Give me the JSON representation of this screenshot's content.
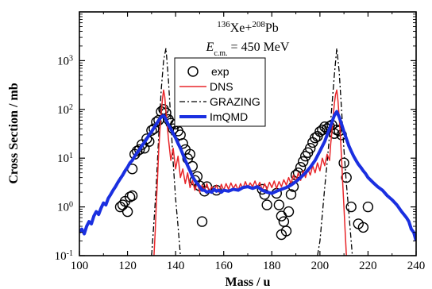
{
  "chart_data": {
    "type": "line",
    "title": "",
    "xlabel": "Mass / u",
    "ylabel": "Cross Section / mb",
    "xlim": [
      100,
      240
    ],
    "ylim": [
      0.1,
      10000
    ],
    "yscale": "log",
    "x_ticks": [
      "100",
      "120",
      "140",
      "160",
      "180",
      "200",
      "220",
      "240"
    ],
    "y_ticks": [
      {
        "base": "10",
        "exp": "-1"
      },
      {
        "base": "10",
        "exp": "0"
      },
      {
        "base": "10",
        "exp": "1"
      },
      {
        "base": "10",
        "exp": "2"
      },
      {
        "base": "10",
        "exp": "3"
      }
    ],
    "grid": false,
    "legend": {
      "position": "center-top",
      "entries": [
        {
          "label": "exp",
          "style": "open-circle",
          "color": "#000000"
        },
        {
          "label": "DNS",
          "style": "thin-line",
          "color": "#e8262a"
        },
        {
          "label": "GRAZING",
          "style": "dash-dot",
          "color": "#000000"
        },
        {
          "label": "ImQMD",
          "style": "thick-line",
          "color": "#1a2fe0"
        }
      ]
    },
    "annotations": {
      "reaction": {
        "sup1": "136",
        "t1": "Xe+",
        "sup2": "208",
        "t2": "Pb"
      },
      "energy": {
        "pre": "E",
        "sub": "c.m.",
        "post": " = 450 MeV"
      }
    },
    "series": [
      {
        "name": "exp",
        "kind": "scatter",
        "color": "#000000",
        "points": [
          [
            117,
            1.0
          ],
          [
            118,
            1.1
          ],
          [
            119,
            1.3
          ],
          [
            120,
            0.8
          ],
          [
            121,
            1.6
          ],
          [
            122,
            1.7
          ],
          [
            122,
            6.0
          ],
          [
            123,
            12
          ],
          [
            124,
            14
          ],
          [
            125,
            15
          ],
          [
            126,
            19
          ],
          [
            127,
            16
          ],
          [
            128,
            25
          ],
          [
            129,
            22
          ],
          [
            130,
            37
          ],
          [
            131,
            40
          ],
          [
            132,
            55
          ],
          [
            133,
            60
          ],
          [
            134,
            90
          ],
          [
            135,
            100
          ],
          [
            136,
            85
          ],
          [
            137,
            62
          ],
          [
            138,
            52
          ],
          [
            139,
            40
          ],
          [
            140,
            50
          ],
          [
            141,
            36
          ],
          [
            142,
            30
          ],
          [
            143,
            20
          ],
          [
            144,
            15
          ],
          [
            145,
            9.8
          ],
          [
            146,
            12
          ],
          [
            147,
            6.8
          ],
          [
            148,
            3.5
          ],
          [
            149,
            4.2
          ],
          [
            150,
            2.7
          ],
          [
            151,
            0.5
          ],
          [
            152,
            2.1
          ],
          [
            153,
            2.6
          ],
          [
            157,
            2.2
          ],
          [
            176,
            2.3
          ],
          [
            177,
            1.8
          ],
          [
            178,
            1.1
          ],
          [
            182,
            1.9
          ],
          [
            183,
            1.1
          ],
          [
            184,
            0.65
          ],
          [
            185,
            0.5
          ],
          [
            186,
            0.32
          ],
          [
            187,
            0.8
          ],
          [
            188,
            1.8
          ],
          [
            184,
            0.27
          ],
          [
            189,
            2.6
          ],
          [
            190,
            4.5
          ],
          [
            191,
            5.0
          ],
          [
            192,
            6.5
          ],
          [
            193,
            8.5
          ],
          [
            194,
            11
          ],
          [
            195,
            13
          ],
          [
            196,
            16
          ],
          [
            197,
            21
          ],
          [
            198,
            26
          ],
          [
            199,
            28
          ],
          [
            200,
            35
          ],
          [
            201,
            38
          ],
          [
            202,
            44
          ],
          [
            203,
            40
          ],
          [
            204,
            45
          ],
          [
            205,
            48
          ],
          [
            206,
            32
          ],
          [
            207,
            38
          ],
          [
            208,
            36
          ],
          [
            209,
            30
          ],
          [
            210,
            8.0
          ],
          [
            211,
            4.0
          ],
          [
            213,
            1.0
          ],
          [
            216,
            0.45
          ],
          [
            218,
            0.38
          ],
          [
            220,
            1.0
          ]
        ]
      },
      {
        "name": "DNS",
        "kind": "line",
        "color": "#e8262a",
        "points": [
          [
            131,
            0.1
          ],
          [
            131.5,
            0.3
          ],
          [
            132,
            1.2
          ],
          [
            132.5,
            4
          ],
          [
            133,
            15
          ],
          [
            133.5,
            40
          ],
          [
            134,
            85
          ],
          [
            134.5,
            160
          ],
          [
            135,
            250
          ],
          [
            135.5,
            180
          ],
          [
            136,
            90
          ],
          [
            136.5,
            50
          ],
          [
            137,
            25
          ],
          [
            138,
            9
          ],
          [
            139,
            16
          ],
          [
            140,
            6
          ],
          [
            141,
            11
          ],
          [
            142,
            4
          ],
          [
            143,
            6
          ],
          [
            144,
            3
          ],
          [
            145,
            5
          ],
          [
            146,
            2.5
          ],
          [
            147,
            3.5
          ],
          [
            148,
            2.2
          ],
          [
            149,
            3.2
          ],
          [
            150,
            2.0
          ],
          [
            151,
            2.8
          ],
          [
            152,
            2.2
          ],
          [
            153,
            3.0
          ],
          [
            154,
            2.0
          ],
          [
            155,
            2.6
          ],
          [
            156,
            2.2
          ],
          [
            157,
            2.8
          ],
          [
            158,
            2.0
          ],
          [
            159,
            2.9
          ],
          [
            160,
            2.2
          ],
          [
            161,
            3.0
          ],
          [
            162,
            2.3
          ],
          [
            163,
            3.1
          ],
          [
            164,
            2.4
          ],
          [
            165,
            2.9
          ],
          [
            166,
            2.2
          ],
          [
            167,
            3.0
          ],
          [
            168,
            2.4
          ],
          [
            169,
            3.3
          ],
          [
            170,
            2.5
          ],
          [
            171,
            3.1
          ],
          [
            172,
            2.6
          ],
          [
            173,
            3.4
          ],
          [
            174,
            2.5
          ],
          [
            175,
            3.2
          ],
          [
            176,
            2.2
          ],
          [
            177,
            3.0
          ],
          [
            178,
            2.3
          ],
          [
            179,
            3.2
          ],
          [
            180,
            2.5
          ],
          [
            181,
            3.4
          ],
          [
            182,
            2.4
          ],
          [
            183,
            3.3
          ],
          [
            184,
            2.6
          ],
          [
            185,
            3.6
          ],
          [
            186,
            2.8
          ],
          [
            187,
            4.0
          ],
          [
            188,
            3.0
          ],
          [
            189,
            4.5
          ],
          [
            190,
            3.3
          ],
          [
            191,
            5.0
          ],
          [
            192,
            3.5
          ],
          [
            193,
            5.5
          ],
          [
            194,
            4.0
          ],
          [
            195,
            6.0
          ],
          [
            196,
            4.5
          ],
          [
            197,
            7.0
          ],
          [
            198,
            5.0
          ],
          [
            199,
            8.0
          ],
          [
            200,
            5.5
          ],
          [
            201,
            10
          ],
          [
            202,
            7
          ],
          [
            203,
            12
          ],
          [
            204,
            9
          ],
          [
            204.5,
            20
          ],
          [
            205,
            35
          ],
          [
            205.5,
            70
          ],
          [
            206,
            130
          ],
          [
            206.5,
            200
          ],
          [
            207,
            250
          ],
          [
            207.5,
            150
          ],
          [
            208,
            70
          ],
          [
            208.5,
            30
          ],
          [
            209,
            10
          ],
          [
            209.5,
            3
          ],
          [
            210,
            1
          ],
          [
            210.5,
            0.3
          ],
          [
            211,
            0.1
          ]
        ]
      },
      {
        "name": "GRAZING",
        "kind": "line",
        "color": "#000000",
        "points": [
          [
            130,
            0.1
          ],
          [
            131,
            0.5
          ],
          [
            132,
            3
          ],
          [
            133,
            30
          ],
          [
            134,
            250
          ],
          [
            135,
            1000
          ],
          [
            136,
            1800
          ],
          [
            137,
            400
          ],
          [
            138,
            60
          ],
          [
            139,
            8
          ],
          [
            140,
            1.5
          ],
          [
            141,
            0.4
          ],
          [
            142,
            0.1
          ],
          [
            199,
            0.1
          ],
          [
            200,
            0.2
          ],
          [
            201,
            0.7
          ],
          [
            202,
            2.5
          ],
          [
            203,
            8
          ],
          [
            204,
            30
          ],
          [
            205,
            120
          ],
          [
            206,
            500
          ],
          [
            207,
            1800
          ],
          [
            208,
            600
          ],
          [
            209,
            100
          ],
          [
            210,
            15
          ],
          [
            211,
            3
          ],
          [
            212,
            0.8
          ],
          [
            213,
            0.2
          ],
          [
            213.5,
            0.1
          ]
        ]
      },
      {
        "name": "ImQMD",
        "kind": "line",
        "color": "#1a2fe0",
        "points": [
          [
            100,
            0.3
          ],
          [
            101,
            0.35
          ],
          [
            102,
            0.28
          ],
          [
            103,
            0.4
          ],
          [
            104,
            0.5
          ],
          [
            105,
            0.45
          ],
          [
            106,
            0.65
          ],
          [
            107,
            0.8
          ],
          [
            108,
            0.7
          ],
          [
            109,
            0.95
          ],
          [
            110,
            1.2
          ],
          [
            111,
            1.1
          ],
          [
            112,
            1.5
          ],
          [
            113,
            1.8
          ],
          [
            114,
            2.2
          ],
          [
            115,
            2.6
          ],
          [
            116,
            3.2
          ],
          [
            117,
            3.8
          ],
          [
            118,
            4.5
          ],
          [
            119,
            5.5
          ],
          [
            120,
            6.5
          ],
          [
            121,
            8
          ],
          [
            122,
            9
          ],
          [
            123,
            11
          ],
          [
            124,
            13
          ],
          [
            125,
            15
          ],
          [
            126,
            18
          ],
          [
            127,
            21
          ],
          [
            128,
            25
          ],
          [
            129,
            30
          ],
          [
            130,
            35
          ],
          [
            131,
            42
          ],
          [
            132,
            50
          ],
          [
            133,
            60
          ],
          [
            134,
            70
          ],
          [
            135,
            75
          ],
          [
            136,
            62
          ],
          [
            137,
            48
          ],
          [
            138,
            40
          ],
          [
            139,
            32
          ],
          [
            140,
            26
          ],
          [
            141,
            20
          ],
          [
            142,
            16
          ],
          [
            143,
            12
          ],
          [
            144,
            9
          ],
          [
            145,
            7
          ],
          [
            146,
            5.5
          ],
          [
            147,
            4.2
          ],
          [
            148,
            3.5
          ],
          [
            149,
            3.0
          ],
          [
            150,
            2.6
          ],
          [
            151,
            2.2
          ],
          [
            152,
            2.2
          ],
          [
            153,
            2.0
          ],
          [
            154,
            2.1
          ],
          [
            155,
            2.0
          ],
          [
            156,
            2.3
          ],
          [
            157,
            2.1
          ],
          [
            158,
            2.2
          ],
          [
            159,
            2.0
          ],
          [
            160,
            2.2
          ],
          [
            162,
            2.1
          ],
          [
            164,
            2.3
          ],
          [
            166,
            2.2
          ],
          [
            168,
            2.5
          ],
          [
            170,
            2.6
          ],
          [
            172,
            2.4
          ],
          [
            174,
            2.6
          ],
          [
            176,
            2.2
          ],
          [
            178,
            2.0
          ],
          [
            180,
            1.9
          ],
          [
            182,
            2.1
          ],
          [
            184,
            2.3
          ],
          [
            186,
            2.5
          ],
          [
            188,
            2.8
          ],
          [
            190,
            3.3
          ],
          [
            192,
            4.0
          ],
          [
            194,
            5.0
          ],
          [
            196,
            6.5
          ],
          [
            198,
            9
          ],
          [
            200,
            14
          ],
          [
            202,
            22
          ],
          [
            203,
            30
          ],
          [
            204,
            40
          ],
          [
            205,
            55
          ],
          [
            206,
            75
          ],
          [
            207,
            90
          ],
          [
            208,
            70
          ],
          [
            209,
            50
          ],
          [
            210,
            35
          ],
          [
            211,
            25
          ],
          [
            212,
            18
          ],
          [
            213,
            14
          ],
          [
            214,
            11
          ],
          [
            215,
            9
          ],
          [
            216,
            7.5
          ],
          [
            217,
            6.5
          ],
          [
            218,
            5.5
          ],
          [
            219,
            4.8
          ],
          [
            220,
            4.0
          ],
          [
            222,
            3.2
          ],
          [
            224,
            2.6
          ],
          [
            226,
            2.2
          ],
          [
            228,
            1.7
          ],
          [
            230,
            1.4
          ],
          [
            232,
            1.1
          ],
          [
            234,
            0.8
          ],
          [
            236,
            0.6
          ],
          [
            237,
            0.5
          ],
          [
            238,
            0.35
          ],
          [
            239,
            0.3
          ],
          [
            240,
            0.2
          ]
        ]
      }
    ]
  }
}
